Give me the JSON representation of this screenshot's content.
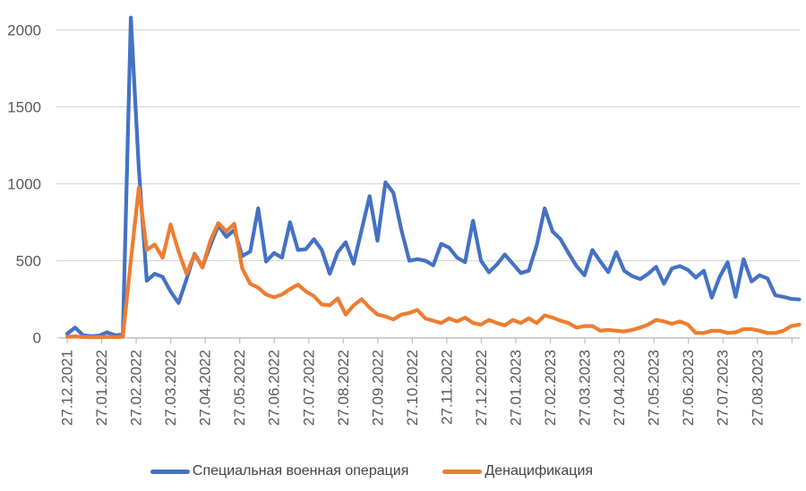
{
  "chart_data": {
    "type": "line",
    "x_tick_labels": [
      "27.12.2021",
      "27.01.2022",
      "27.02.2022",
      "27.03.2022",
      "27.04.2022",
      "27.05.2022",
      "27.06.2022",
      "27.07.2022",
      "27.08.2022",
      "27.09.2022",
      "27.10.2022",
      "27.11.2022",
      "27.12.2022",
      "27.01.2023",
      "27.02.2023",
      "27.03.2023",
      "27.04.2023",
      "27.05.2023",
      "27.06.2023",
      "27.07.2023",
      "27.08.2023"
    ],
    "y_ticks": [
      0,
      500,
      1000,
      1500,
      2000
    ],
    "ylim": [
      0,
      2150
    ],
    "points_per_x_tick": 4.337,
    "grid": "horizontal",
    "legend_position": "bottom",
    "axis_label_color": "#595959",
    "gridline_color": "#D9D9D9",
    "axis_line_color": "#BFBFBF",
    "series": [
      {
        "name": "Специальная военная операция",
        "color": "#4472C4",
        "values": [
          25,
          65,
          15,
          10,
          12,
          35,
          15,
          20,
          2080,
          1100,
          370,
          415,
          395,
          300,
          225,
          380,
          545,
          460,
          600,
          730,
          655,
          700,
          530,
          560,
          840,
          495,
          550,
          520,
          750,
          570,
          575,
          640,
          570,
          415,
          555,
          620,
          480,
          700,
          920,
          630,
          1010,
          940,
          700,
          500,
          510,
          500,
          470,
          610,
          585,
          520,
          490,
          760,
          500,
          425,
          475,
          540,
          480,
          420,
          435,
          600,
          840,
          690,
          640,
          550,
          465,
          405,
          570,
          495,
          425,
          555,
          435,
          400,
          380,
          415,
          460,
          350,
          450,
          465,
          440,
          390,
          435,
          260,
          395,
          490,
          265,
          510,
          365,
          405,
          385,
          275,
          265,
          252,
          248
        ]
      },
      {
        "name": "Денацификация",
        "color": "#ED7D31",
        "values": [
          5,
          8,
          4,
          3,
          3,
          5,
          3,
          5,
          500,
          975,
          570,
          605,
          520,
          735,
          560,
          415,
          540,
          455,
          630,
          745,
          690,
          740,
          450,
          350,
          325,
          280,
          262,
          280,
          315,
          345,
          300,
          270,
          215,
          210,
          255,
          150,
          210,
          250,
          195,
          150,
          138,
          118,
          150,
          160,
          180,
          125,
          110,
          95,
          125,
          105,
          130,
          95,
          85,
          115,
          95,
          80,
          115,
          95,
          125,
          95,
          145,
          130,
          110,
          95,
          65,
          75,
          75,
          45,
          50,
          45,
          40,
          50,
          65,
          85,
          115,
          105,
          90,
          105,
          85,
          30,
          30,
          45,
          45,
          30,
          35,
          55,
          55,
          45,
          30,
          30,
          45,
          75,
          85
        ]
      }
    ]
  }
}
